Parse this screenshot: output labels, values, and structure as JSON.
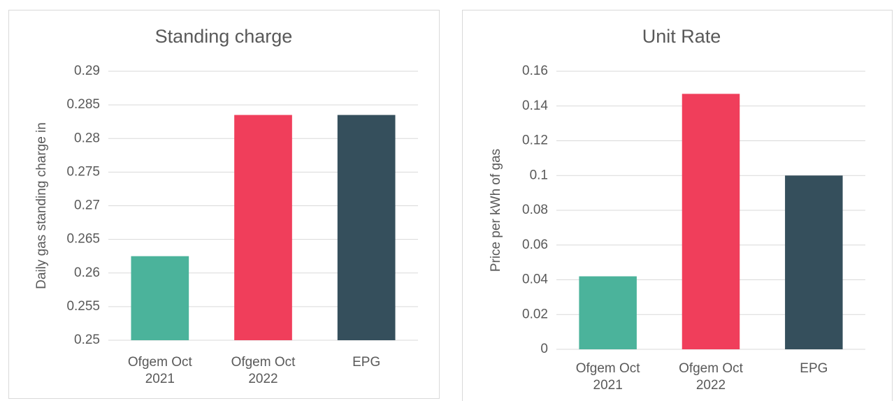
{
  "chart_data": [
    {
      "type": "bar",
      "title": "Standing charge",
      "y_label": "Daily gas standing charge in",
      "categories": [
        "Ofgem Oct 2021",
        "Ofgem Oct 2022",
        "EPG"
      ],
      "values": [
        0.2625,
        0.2835,
        0.2835
      ],
      "colors": [
        "#4bb39b",
        "#f03e5b",
        "#354f5c"
      ],
      "ylim": [
        0.25,
        0.29
      ],
      "yticks": [
        0.25,
        0.255,
        0.26,
        0.265,
        0.27,
        0.275,
        0.28,
        0.285,
        0.29
      ],
      "grid": true
    },
    {
      "type": "bar",
      "title": "Unit Rate",
      "y_label": "Price per kWh of gas",
      "categories": [
        "Ofgem Oct 2021",
        "Ofgem Oct 2022",
        "EPG"
      ],
      "values": [
        0.042,
        0.147,
        0.1
      ],
      "colors": [
        "#4bb39b",
        "#f03e5b",
        "#354f5c"
      ],
      "ylim": [
        0,
        0.16
      ],
      "yticks": [
        0,
        0.02,
        0.04,
        0.06,
        0.08,
        0.1,
        0.12,
        0.14,
        0.16
      ],
      "grid": true
    }
  ]
}
